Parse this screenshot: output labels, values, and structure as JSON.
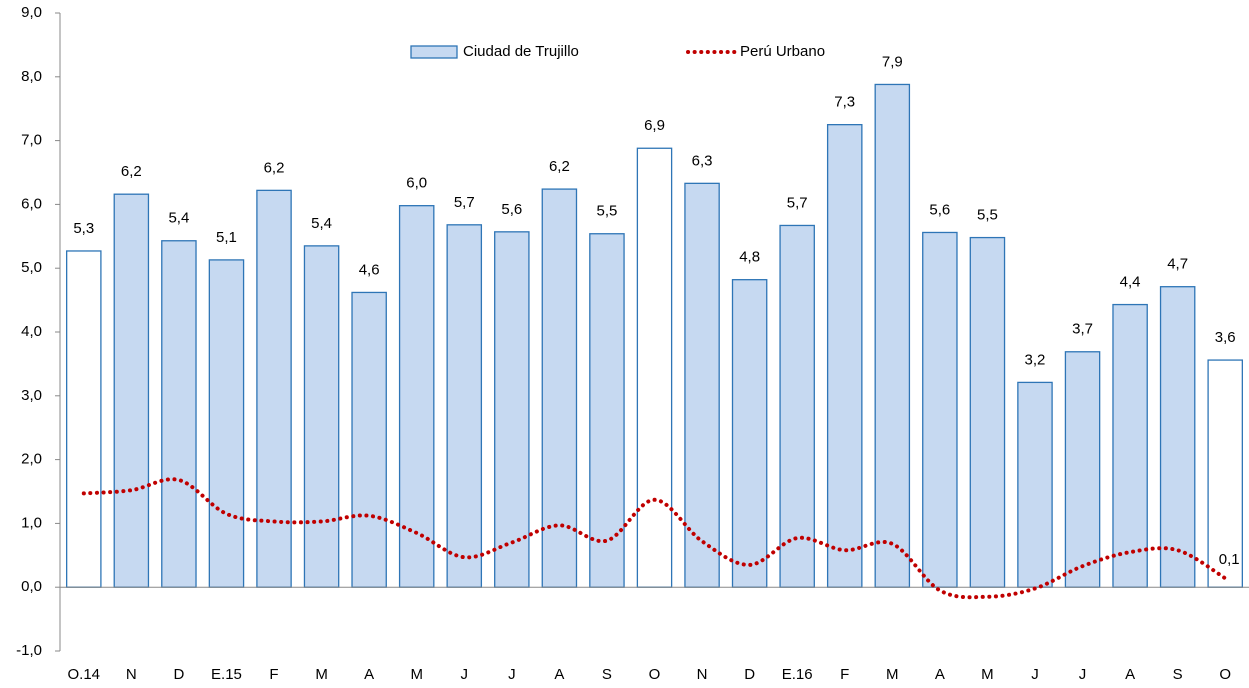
{
  "chart_data": {
    "type": "bar-line",
    "categories": [
      "O.14",
      "N",
      "D",
      "E.15",
      "F",
      "M",
      "A",
      "M",
      "J",
      "J",
      "A",
      "S",
      "O",
      "N",
      "D",
      "E.16",
      "F",
      "M",
      "A",
      "M",
      "J",
      "J",
      "A",
      "S",
      "O"
    ],
    "series": [
      {
        "name": "Ciudad de Trujillo",
        "type": "bar",
        "color": "#c6d9f1",
        "stroke": "#2e75b6",
        "fill_colors": [
          "#ffffff",
          "#c6d9f1",
          "#c6d9f1",
          "#c6d9f1",
          "#c6d9f1",
          "#c6d9f1",
          "#c6d9f1",
          "#c6d9f1",
          "#c6d9f1",
          "#c6d9f1",
          "#c6d9f1",
          "#c6d9f1",
          "#ffffff",
          "#c6d9f1",
          "#c6d9f1",
          "#c6d9f1",
          "#c6d9f1",
          "#c6d9f1",
          "#c6d9f1",
          "#c6d9f1",
          "#c6d9f1",
          "#c6d9f1",
          "#c6d9f1",
          "#c6d9f1",
          "#ffffff"
        ],
        "values": [
          5.27,
          6.16,
          5.43,
          5.13,
          6.22,
          5.35,
          4.62,
          5.98,
          5.68,
          5.57,
          6.24,
          5.54,
          6.88,
          6.33,
          4.82,
          5.67,
          7.25,
          7.88,
          5.56,
          5.48,
          3.21,
          3.69,
          4.43,
          4.71,
          3.56
        ],
        "value_labels": [
          "5,3",
          "6,2",
          "5,4",
          "5,1",
          "6,2",
          "5,4",
          "4,6",
          "6,0",
          "5,7",
          "5,6",
          "6,2",
          "5,5",
          "6,9",
          "6,3",
          "4,8",
          "5,7",
          "7,3",
          "7,9",
          "5,6",
          "5,5",
          "3,2",
          "3,7",
          "4,4",
          "4,7",
          "3,6"
        ]
      },
      {
        "name": "Perú Urbano",
        "type": "line",
        "color": "#c00000",
        "dotted": true,
        "smooth": true,
        "values": [
          1.47,
          1.52,
          1.68,
          1.15,
          1.03,
          1.03,
          1.12,
          0.85,
          0.47,
          0.7,
          0.97,
          0.73,
          1.37,
          0.72,
          0.35,
          0.77,
          0.58,
          0.68,
          -0.05,
          -0.15,
          -0.02,
          0.33,
          0.55,
          0.58,
          0.14
        ],
        "value_labels": [
          null,
          null,
          null,
          null,
          null,
          null,
          null,
          null,
          null,
          null,
          null,
          null,
          null,
          null,
          null,
          null,
          null,
          null,
          null,
          null,
          null,
          null,
          null,
          null,
          "0,1"
        ]
      }
    ],
    "ylim": [
      -1,
      9
    ],
    "yticks": [
      {
        "value": -1,
        "label": "-1,0"
      },
      {
        "value": 0,
        "label": "0,0"
      },
      {
        "value": 1,
        "label": "1,0"
      },
      {
        "value": 2,
        "label": "2,0"
      },
      {
        "value": 3,
        "label": "3,0"
      },
      {
        "value": 4,
        "label": "4,0"
      },
      {
        "value": 5,
        "label": "5,0"
      },
      {
        "value": 6,
        "label": "6,0"
      },
      {
        "value": 7,
        "label": "7,0"
      },
      {
        "value": 8,
        "label": "8,0"
      },
      {
        "value": 9,
        "label": "9,0"
      }
    ],
    "legend": "top"
  }
}
